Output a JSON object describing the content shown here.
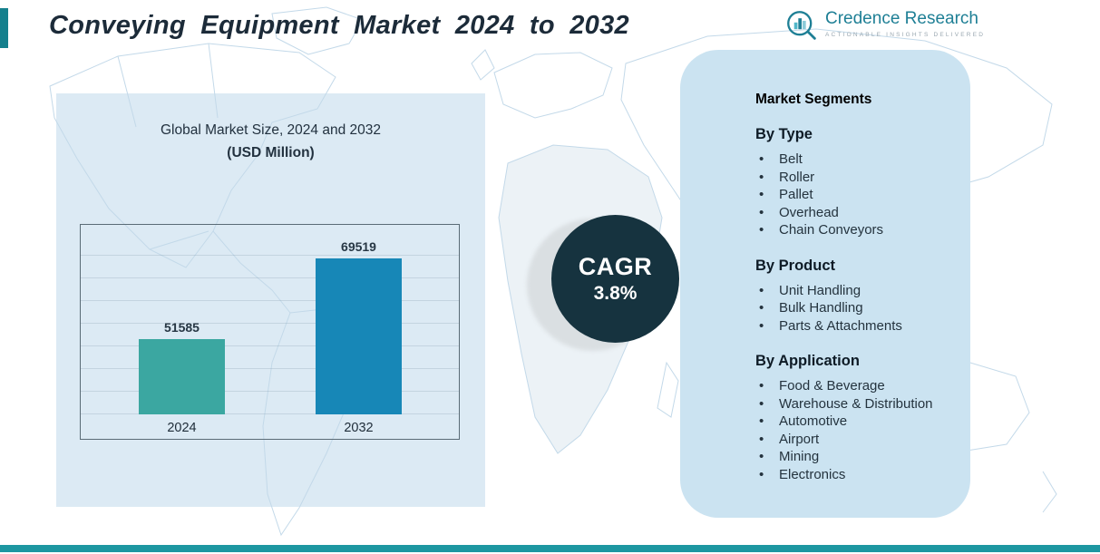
{
  "header": {
    "title": "Conveying Equipment Market 2024 to 2032",
    "brand": {
      "name": "Credence Research",
      "tagline": "Actionable Insights Delivered"
    }
  },
  "chart_data": {
    "type": "bar",
    "title": "Global Market Size, 2024 and 2032",
    "subtitle": "(USD Million)",
    "categories": [
      "2024",
      "2032"
    ],
    "values": [
      51585,
      69519
    ],
    "ylim": [
      35000,
      75000
    ],
    "grid": true,
    "legend": "none",
    "bar_colors": [
      "#3BA7A1",
      "#1787B7"
    ]
  },
  "cagr": {
    "label": "CAGR",
    "value": "3.8%"
  },
  "panel": {
    "title": "Market Segments",
    "sections": [
      {
        "heading": "By Type",
        "items": [
          "Belt",
          "Roller",
          "Pallet",
          "Overhead",
          "Chain Conveyors"
        ]
      },
      {
        "heading": "By Product",
        "items": [
          "Unit Handling",
          "Bulk Handling",
          "Parts & Attachments"
        ]
      },
      {
        "heading": "By Application",
        "items": [
          "Food & Beverage",
          "Warehouse & Distribution",
          "Automotive",
          "Airport",
          "Mining",
          "Electronics"
        ]
      }
    ]
  },
  "colors": {
    "bar_2024": "#3BA7A1",
    "bar_2032": "#1787B7",
    "cagr_circle": "#16333F",
    "panel_bg": "#CBE3F1",
    "backdrop_bg": "#DCEAF4",
    "accent_teal": "#1D97A1",
    "brand_teal": "#1E7F95",
    "map_line": "#C3D9E9"
  },
  "icons": {
    "brand_logo": "magnifier-bar-chart-icon",
    "list_bullet": "•"
  }
}
